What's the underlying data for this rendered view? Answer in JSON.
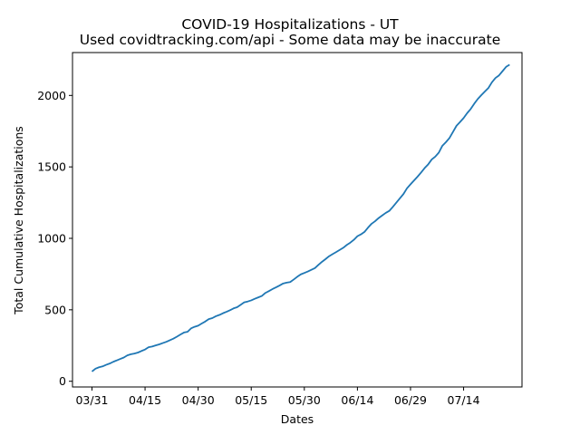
{
  "chart_data": {
    "type": "line",
    "title": "COVID-19 Hospitalizations - UT",
    "subtitle": "Used covidtracking.com/api - Some data may be inaccurate",
    "xlabel": "Dates",
    "ylabel": "Total Cumulative Hospitalizations",
    "x_start": "03/31",
    "x_ticks": [
      {
        "label": "03/31",
        "day": 0
      },
      {
        "label": "04/15",
        "day": 15
      },
      {
        "label": "04/30",
        "day": 30
      },
      {
        "label": "05/15",
        "day": 45
      },
      {
        "label": "05/30",
        "day": 60
      },
      {
        "label": "06/14",
        "day": 75
      },
      {
        "label": "06/29",
        "day": 90
      },
      {
        "label": "07/14",
        "day": 105
      }
    ],
    "y_ticks": [
      0,
      500,
      1000,
      1500,
      2000
    ],
    "xlim": [
      -5.5,
      121.5
    ],
    "ylim": [
      -40,
      2300
    ],
    "grid": false,
    "line_color": "#1f77b4",
    "series": [
      {
        "values": [
          68,
          88,
          98,
          104,
          115,
          124,
          136,
          146,
          156,
          166,
          181,
          189,
          194,
          201,
          212,
          222,
          238,
          243,
          251,
          258,
          267,
          276,
          287,
          298,
          312,
          327,
          341,
          346,
          370,
          381,
          389,
          404,
          418,
          435,
          442,
          455,
          464,
          476,
          486,
          497,
          510,
          518,
          535,
          552,
          558,
          566,
          577,
          587,
          597,
          618,
          631,
          645,
          657,
          670,
          684,
          690,
          694,
          712,
          731,
          748,
          758,
          768,
          780,
          792,
          815,
          836,
          855,
          875,
          890,
          904,
          919,
          934,
          954,
          970,
          990,
          1015,
          1028,
          1045,
          1075,
          1102,
          1120,
          1142,
          1160,
          1178,
          1192,
          1220,
          1250,
          1280,
          1310,
          1350,
          1378,
          1405,
          1432,
          1461,
          1492,
          1518,
          1552,
          1572,
          1600,
          1648,
          1673,
          1702,
          1745,
          1788,
          1814,
          1842,
          1876,
          1905,
          1942,
          1975,
          2002,
          2027,
          2052,
          2092,
          2122,
          2140,
          2170,
          2200,
          2215
        ]
      }
    ]
  }
}
